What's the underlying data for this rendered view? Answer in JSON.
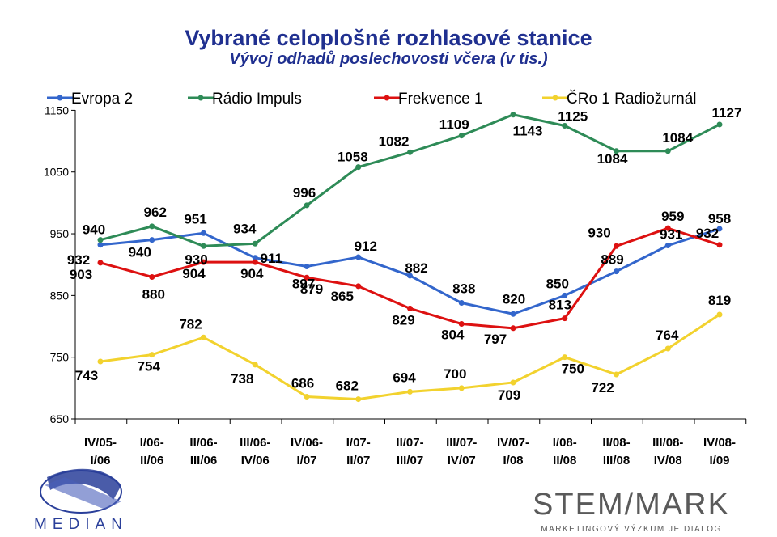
{
  "title": "Vybrané celoplošné rozhlasové stanice",
  "subtitle": "Vývoj odhadů poslechovosti včera (v tis.)",
  "logos": {
    "median": "MEDIAN",
    "stemmark": "STEM/MARK",
    "stemmark_tagline": "MARKETINGOVÝ VÝZKUM JE DIALOG"
  },
  "chart_data": {
    "type": "line",
    "title": "Vybrané celoplošné rozhlasové stanice",
    "subtitle": "Vývoj odhadů poslechovosti včera (v tis.)",
    "categories": [
      [
        "IV/05-",
        "I/06"
      ],
      [
        "I/06-",
        "II/06"
      ],
      [
        "II/06-",
        "III/06"
      ],
      [
        "III/06-",
        "IV/06"
      ],
      [
        "IV/06-",
        "I/07"
      ],
      [
        "I/07-",
        "II/07"
      ],
      [
        "II/07-",
        "III/07"
      ],
      [
        "III/07-",
        "IV/07"
      ],
      [
        "IV/07-",
        "I/08"
      ],
      [
        "I/08-",
        "II/08"
      ],
      [
        "II/08-",
        "III/08"
      ],
      [
        "III/08-",
        "IV/08"
      ],
      [
        "IV/08-",
        "I/09"
      ]
    ],
    "ylim": [
      650,
      1150
    ],
    "yticks": [
      650,
      750,
      850,
      950,
      1050,
      1150
    ],
    "grid": false,
    "legend_position": "top",
    "series": [
      {
        "name": "Evropa 2",
        "color": "#3366cc",
        "values": [
          932,
          940,
          951,
          911,
          897,
          912,
          882,
          838,
          820,
          850,
          889,
          931,
          958
        ]
      },
      {
        "name": "Rádio Impuls",
        "color": "#2e8b57",
        "values": [
          940,
          962,
          930,
          934,
          996,
          1058,
          1082,
          1109,
          1143,
          1125,
          1084,
          1084,
          1127
        ]
      },
      {
        "name": "Frekvence 1",
        "color": "#dd1111",
        "values": [
          903,
          880,
          904,
          904,
          879,
          865,
          829,
          804,
          797,
          813,
          930,
          959,
          932
        ]
      },
      {
        "name": "ČRo 1 Radiožurnál",
        "color": "#f2d22e",
        "values": [
          743,
          754,
          782,
          738,
          686,
          682,
          694,
          700,
          709,
          750,
          722,
          764,
          819
        ]
      }
    ]
  }
}
